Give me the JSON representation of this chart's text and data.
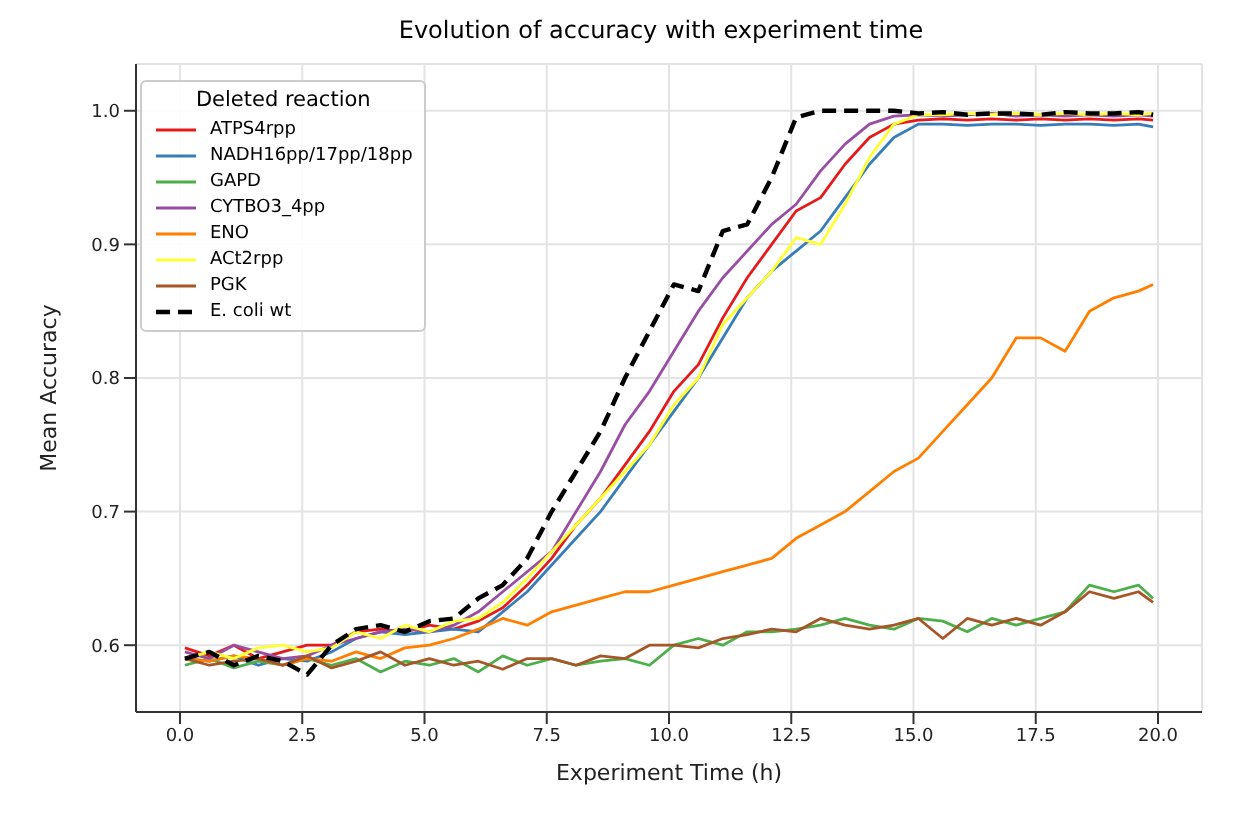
{
  "chart_data": {
    "type": "line",
    "title": "Evolution of accuracy with experiment time",
    "xlabel": "Experiment Time (h)",
    "ylabel": "Mean Accuracy",
    "legend_title": "Deleted reaction",
    "legend": "top left",
    "grid": true,
    "marker": "none",
    "xlim": [
      -0.9,
      20.9
    ],
    "ylim": [
      0.55,
      1.035
    ],
    "xticks": [
      {
        "value": 0,
        "label": "0.0"
      },
      {
        "value": 2.5,
        "label": "2.5"
      },
      {
        "value": 5,
        "label": "5.0"
      },
      {
        "value": 7.5,
        "label": "7.5"
      },
      {
        "value": 10,
        "label": "10.0"
      },
      {
        "value": 12.5,
        "label": "12.5"
      },
      {
        "value": 15,
        "label": "15.0"
      },
      {
        "value": 17.5,
        "label": "17.5"
      },
      {
        "value": 20,
        "label": "20.0"
      }
    ],
    "yticks": [
      0.6,
      0.7,
      0.8,
      0.9,
      {
        "value": 1,
        "label": "1.0"
      }
    ],
    "x": [
      0.1,
      0.6,
      1.1,
      1.6,
      2.1,
      2.6,
      3.1,
      3.6,
      4.1,
      4.6,
      5.1,
      5.6,
      6.1,
      6.6,
      7.1,
      7.6,
      8.1,
      8.6,
      9.1,
      9.6,
      10.1,
      10.6,
      11.1,
      11.6,
      12.1,
      12.6,
      13.1,
      13.6,
      14.1,
      14.6,
      15.1,
      15.6,
      16.1,
      16.6,
      17.1,
      17.6,
      18.1,
      18.6,
      19.1,
      19.6,
      19.9
    ],
    "series": [
      {
        "name": "ATPS4rpp",
        "color": "#e41a1c",
        "line_style": "solid",
        "values": [
          0.598,
          0.592,
          0.6,
          0.59,
          0.595,
          0.6,
          0.6,
          0.61,
          0.612,
          0.61,
          0.615,
          0.612,
          0.618,
          0.628,
          0.645,
          0.665,
          0.69,
          0.71,
          0.735,
          0.76,
          0.79,
          0.81,
          0.845,
          0.875,
          0.9,
          0.925,
          0.935,
          0.96,
          0.98,
          0.99,
          0.993,
          0.994,
          0.993,
          0.994,
          0.993,
          0.994,
          0.993,
          0.994,
          0.993,
          0.994,
          0.993
        ]
      },
      {
        "name": "NADH16pp/17pp/18pp",
        "color": "#377eb8",
        "line_style": "solid",
        "values": [
          0.59,
          0.588,
          0.592,
          0.585,
          0.59,
          0.588,
          0.595,
          0.605,
          0.61,
          0.608,
          0.61,
          0.612,
          0.61,
          0.625,
          0.64,
          0.66,
          0.68,
          0.7,
          0.725,
          0.75,
          0.775,
          0.8,
          0.83,
          0.86,
          0.88,
          0.895,
          0.91,
          0.935,
          0.96,
          0.98,
          0.99,
          0.99,
          0.989,
          0.99,
          0.99,
          0.989,
          0.99,
          0.99,
          0.989,
          0.99,
          0.988
        ]
      },
      {
        "name": "GAPD",
        "color": "#4daf4a",
        "line_style": "solid",
        "values": [
          0.585,
          0.59,
          0.583,
          0.588,
          0.585,
          0.59,
          0.585,
          0.59,
          0.58,
          0.588,
          0.585,
          0.59,
          0.58,
          0.592,
          0.585,
          0.59,
          0.585,
          0.588,
          0.59,
          0.585,
          0.6,
          0.605,
          0.6,
          0.61,
          0.61,
          0.612,
          0.615,
          0.62,
          0.615,
          0.612,
          0.62,
          0.618,
          0.61,
          0.62,
          0.615,
          0.62,
          0.625,
          0.645,
          0.64,
          0.645,
          0.635
        ]
      },
      {
        "name": "CYTBO3_4pp",
        "color": "#984ea3",
        "line_style": "solid",
        "values": [
          0.595,
          0.59,
          0.6,
          0.595,
          0.59,
          0.592,
          0.6,
          0.605,
          0.61,
          0.612,
          0.61,
          0.615,
          0.625,
          0.64,
          0.655,
          0.67,
          0.7,
          0.73,
          0.765,
          0.79,
          0.82,
          0.85,
          0.875,
          0.895,
          0.915,
          0.93,
          0.955,
          0.975,
          0.99,
          0.996,
          0.997,
          0.996,
          0.997,
          0.998,
          0.996,
          0.997,
          0.996,
          0.997,
          0.996,
          0.997,
          0.996
        ]
      },
      {
        "name": "ENO",
        "color": "#ff7f00",
        "line_style": "solid",
        "values": [
          0.59,
          0.588,
          0.592,
          0.59,
          0.585,
          0.59,
          0.588,
          0.595,
          0.59,
          0.598,
          0.6,
          0.605,
          0.612,
          0.62,
          0.615,
          0.625,
          0.63,
          0.635,
          0.64,
          0.64,
          0.645,
          0.65,
          0.655,
          0.66,
          0.665,
          0.68,
          0.69,
          0.7,
          0.715,
          0.73,
          0.74,
          0.76,
          0.78,
          0.8,
          0.83,
          0.83,
          0.82,
          0.85,
          0.86,
          0.865,
          0.87
        ]
      },
      {
        "name": "ACt2rpp",
        "color": "#ffff33",
        "line_style": "solid",
        "values": [
          0.59,
          0.595,
          0.59,
          0.598,
          0.6,
          0.595,
          0.598,
          0.61,
          0.605,
          0.615,
          0.61,
          0.618,
          0.62,
          0.632,
          0.65,
          0.67,
          0.69,
          0.71,
          0.73,
          0.75,
          0.78,
          0.8,
          0.84,
          0.86,
          0.88,
          0.905,
          0.9,
          0.93,
          0.965,
          0.99,
          0.997,
          0.997,
          0.998,
          0.997,
          0.998,
          0.997,
          0.998,
          0.997,
          0.998,
          0.997,
          0.998
        ]
      },
      {
        "name": "PGK",
        "color": "#a65628",
        "line_style": "solid",
        "values": [
          0.59,
          0.585,
          0.588,
          0.59,
          0.585,
          0.592,
          0.583,
          0.588,
          0.595,
          0.585,
          0.59,
          0.585,
          0.588,
          0.582,
          0.59,
          0.59,
          0.585,
          0.592,
          0.59,
          0.6,
          0.6,
          0.598,
          0.605,
          0.608,
          0.612,
          0.61,
          0.62,
          0.615,
          0.612,
          0.615,
          0.62,
          0.605,
          0.62,
          0.615,
          0.62,
          0.615,
          0.625,
          0.64,
          0.635,
          0.64,
          0.632
        ]
      },
      {
        "name": "E. coli wt",
        "color": "#000000",
        "line_style": "dashed",
        "values": [
          0.59,
          0.595,
          0.585,
          0.592,
          0.588,
          0.578,
          0.6,
          0.612,
          0.615,
          0.61,
          0.618,
          0.62,
          0.635,
          0.645,
          0.665,
          0.7,
          0.73,
          0.76,
          0.8,
          0.835,
          0.87,
          0.865,
          0.91,
          0.915,
          0.95,
          0.995,
          1.0,
          1.0,
          1.0,
          1.0,
          0.998,
          0.999,
          0.997,
          0.998,
          0.998,
          0.997,
          0.999,
          0.998,
          0.998,
          0.999,
          0.997
        ]
      }
    ]
  }
}
